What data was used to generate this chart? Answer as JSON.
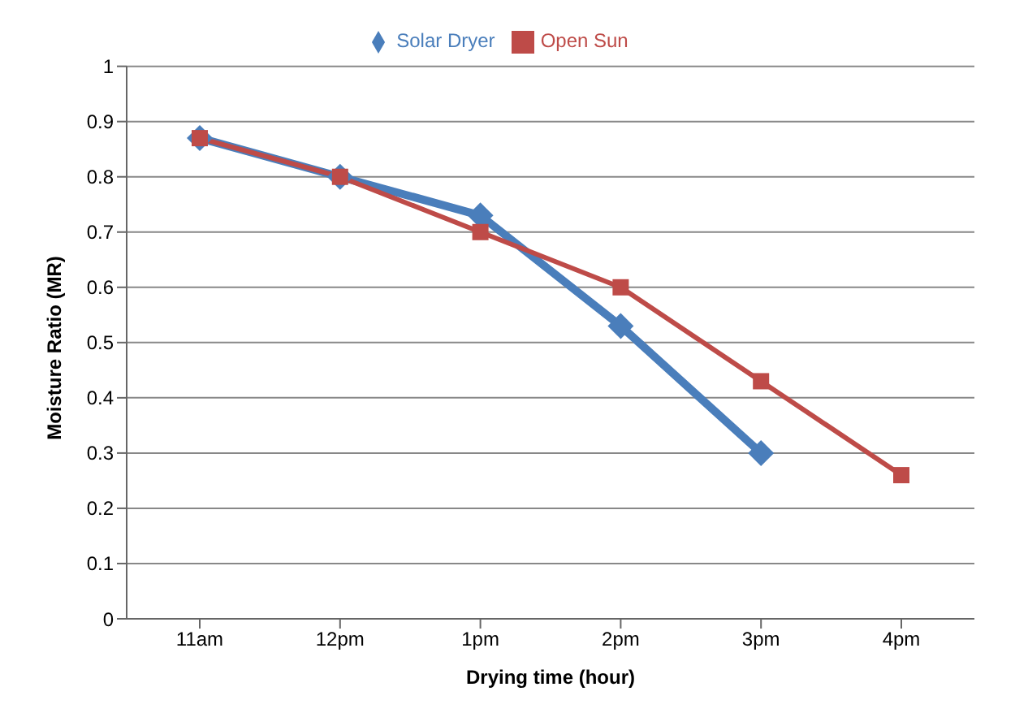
{
  "chart_data": {
    "type": "line",
    "xlabel": "Drying time (hour)",
    "ylabel": "Moisture Ratio (MR)",
    "categories": [
      "11am",
      "12pm",
      "1pm",
      "2pm",
      "3pm",
      "4pm"
    ],
    "ylim": [
      0,
      1
    ],
    "yticks": [
      0,
      0.1,
      0.2,
      0.3,
      0.4,
      0.5,
      0.6,
      0.7,
      0.8,
      0.9,
      1
    ],
    "grid": "y",
    "legend": "top",
    "series": [
      {
        "name": "Solar Dryer",
        "color": "#4a7ebb",
        "marker": "diamond",
        "values": [
          0.87,
          0.8,
          0.73,
          0.53,
          0.3,
          null
        ]
      },
      {
        "name": "Open Sun",
        "color": "#be4b48",
        "marker": "square",
        "values": [
          0.87,
          0.8,
          0.7,
          0.6,
          0.43,
          0.26
        ]
      }
    ]
  }
}
